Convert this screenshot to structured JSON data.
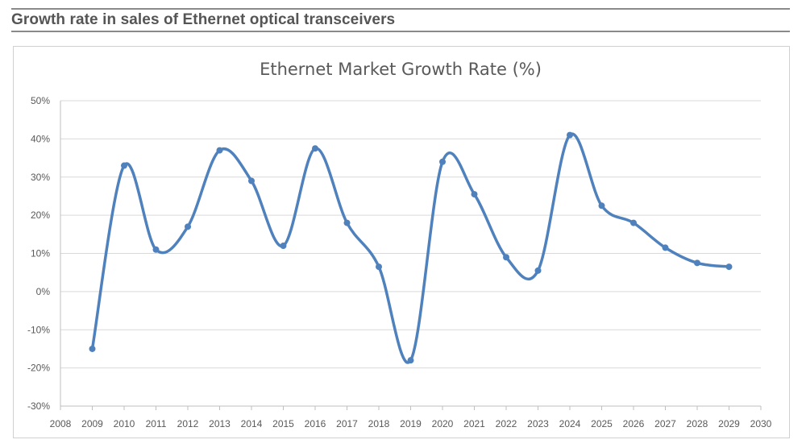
{
  "page": {
    "header_title": "Growth rate in sales of Ethernet optical transceivers"
  },
  "colors": {
    "line": "#4f81bd",
    "grid": "#d9d9d9",
    "axis_text": "#595959",
    "header_text": "#555555"
  },
  "chart_data": {
    "type": "line",
    "title": "Ethernet Market Growth Rate (%)",
    "xlabel": "",
    "ylabel": "",
    "smooth": true,
    "markers": true,
    "grid": true,
    "legend": "none",
    "xlim": [
      2008,
      2030
    ],
    "ylim": [
      -30,
      50
    ],
    "x_ticks": [
      "2008",
      "2009",
      "2010",
      "2011",
      "2012",
      "2013",
      "2014",
      "2015",
      "2016",
      "2017",
      "2018",
      "2019",
      "2020",
      "2021",
      "2022",
      "2023",
      "2024",
      "2025",
      "2026",
      "2027",
      "2028",
      "2029",
      "2030"
    ],
    "y_ticks": [
      "-30%",
      "-20%",
      "-10%",
      "0%",
      "10%",
      "20%",
      "30%",
      "40%",
      "50%"
    ],
    "y_tick_values": [
      -30,
      -20,
      -10,
      0,
      10,
      20,
      30,
      40,
      50
    ],
    "series": [
      {
        "x": [
          2009,
          2010,
          2011,
          2012,
          2013,
          2014,
          2015,
          2016,
          2017,
          2018,
          2019,
          2020,
          2021,
          2022,
          2023,
          2024,
          2025,
          2026,
          2027,
          2028,
          2029
        ],
        "y": [
          -15,
          33,
          11,
          17,
          37,
          29,
          12,
          37.5,
          18,
          6.5,
          -18,
          34,
          25.5,
          9,
          5.5,
          41,
          22.5,
          18,
          11.5,
          7.5,
          6.5
        ]
      }
    ]
  }
}
